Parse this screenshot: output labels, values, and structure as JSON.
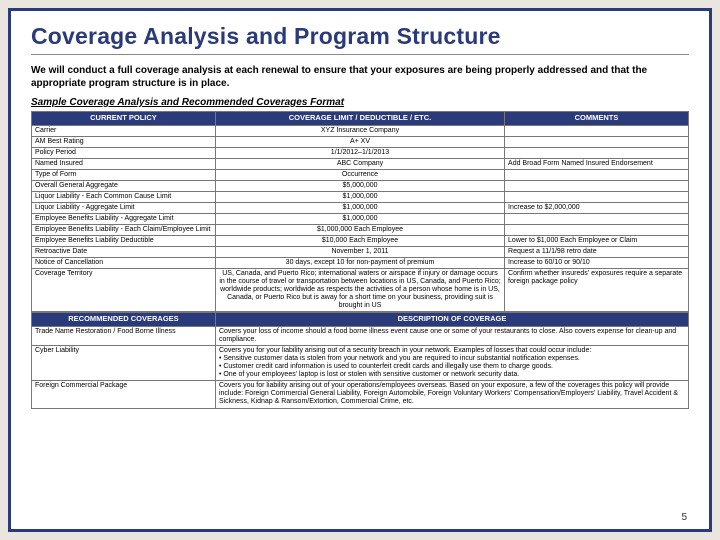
{
  "title": "Coverage Analysis and Program Structure",
  "intro": "We will conduct a full coverage analysis at each renewal to ensure that your exposures are being properly addressed and that the appropriate program structure is in place.",
  "sample_caption": "Sample Coverage Analysis and Recommended Coverages Format",
  "page_number": "5",
  "colors": {
    "frame": "#2a3a7a",
    "header_bg": "#2a3a7a",
    "header_text": "#ffffff",
    "page_bg": "#e8e6df",
    "slide_bg": "#ffffff",
    "border": "#777777"
  },
  "table1": {
    "col_widths": [
      "28%",
      "44%",
      "28%"
    ],
    "headers": [
      "CURRENT POLICY",
      "COVERAGE LIMIT / DEDUCTIBLE / ETC.",
      "COMMENTS"
    ],
    "rows": [
      [
        "Carrier",
        "XYZ Insurance Company",
        ""
      ],
      [
        "AM Best Rating",
        "A+ XV",
        ""
      ],
      [
        "Policy Period",
        "1/1/2012–1/1/2013",
        ""
      ],
      [
        "Named Insured",
        "ABC Company",
        "Add Broad Form Named Insured Endorsement"
      ],
      [
        "Type of Form",
        "Occurrence",
        ""
      ],
      [
        "Overall General Aggregate",
        "$5,000,000",
        ""
      ],
      [
        "Liquor Liability - Each Common Cause Limit",
        "$1,000,000",
        ""
      ],
      [
        "Liquor Liability - Aggregate Limit",
        "$1,000,000",
        "Increase to $2,000,000"
      ]
    ],
    "rows2": [
      [
        "Employee Benefits Liability - Aggregate Limit",
        "$1,000,000",
        ""
      ],
      [
        "Employee Benefits Liability - Each Claim/Employee Limit",
        "$1,000,000 Each Employee",
        ""
      ],
      [
        "Employee Benefits Liability Deductible",
        "$10,000 Each Employee",
        "Lower to $1,000 Each Employee or Claim"
      ],
      [
        "Retroactive Date",
        "November 1, 2011",
        "Request a 11/1/98 retro date"
      ]
    ],
    "rows3": [
      [
        "Notice of Cancellation",
        "30 days, except 10 for non-payment of premium",
        "Increase to 60/10 or 90/10"
      ],
      [
        "Coverage Territory",
        "US, Canada, and Puerto Rico; international waters or airspace if injury or damage occurs in the course of travel or transportation between locations in US, Canada, and Puerto Rico; worldwide products; worldwide as respects the activities of a person whose home is in US, Canada, or Puerto Rico but is away for a short time on your business, providing suit is brought in US",
        "Confirm whether insureds' exposures require a separate foreign package policy"
      ]
    ]
  },
  "table2": {
    "col_widths": [
      "28%",
      "72%"
    ],
    "headers": [
      "RECOMMENDED COVERAGES",
      "DESCRIPTION OF COVERAGE"
    ],
    "rows": [
      [
        "Trade Name Restoration / Food Borne Illness",
        "Covers your loss of income should a food borne illness event cause one or some of your restaurants to close. Also covers expense for clean-up and compliance."
      ],
      [
        "Cyber Liability",
        "Covers you for your liability arising out of a security breach in your network. Examples of losses that could occur include:\n• Sensitive customer data is stolen from your network and you are required to incur substantial notification expenses.\n• Customer credit card information is used to counterfeit credit cards and illegally use them to charge goods.\n• One of your employees' laptop is lost or stolen with sensitive customer or network security data."
      ],
      [
        "Foreign Commercial Package",
        "Covers you for liability arising out of your operations/employees overseas. Based on your exposure, a few of the coverages this policy will provide include: Foreign Commercial General Liability, Foreign Automobile, Foreign Voluntary Workers' Compensation/Employers' Liability, Travel Accident & Sickness, Kidnap & Ransom/Extortion, Commercial Crime, etc."
      ]
    ]
  }
}
